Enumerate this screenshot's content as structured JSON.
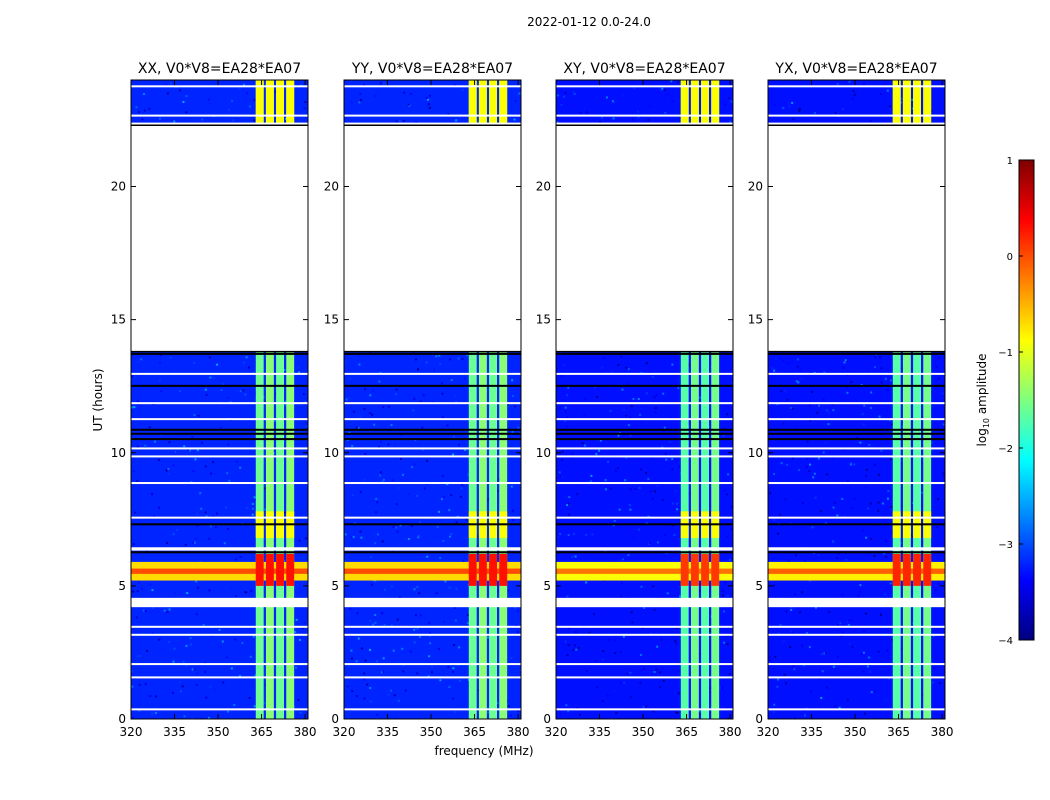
{
  "figure": {
    "suptitle": "2022-01-12 0.0-24.0",
    "xlabel": "frequency (MHz)",
    "ylabel": "UT (hours)"
  },
  "colorbar": {
    "label_prefix": "log",
    "label_sub": "10",
    "label_suffix": " amplitude",
    "range": [
      -4,
      1
    ],
    "ticks": [
      "1",
      "0",
      "−1",
      "−2",
      "−3",
      "−4"
    ],
    "tick_values": [
      1,
      0,
      -1,
      -2,
      -3,
      -4
    ],
    "colormap": "jet",
    "colors": [
      "#00007f",
      "#0000ff",
      "#007fff",
      "#00ffff",
      "#7fff7f",
      "#ffff00",
      "#ff7f00",
      "#ff0000",
      "#7f0000"
    ]
  },
  "chart_data": [
    {
      "type": "heatmap",
      "title": "XX, V0*V8=EA28*EA07",
      "xlabel": "frequency (MHz)",
      "ylabel": "UT (hours)",
      "xlim": [
        320,
        381
      ],
      "ylim": [
        0,
        24
      ],
      "xticks": [
        320,
        335,
        350,
        365,
        380
      ],
      "yticks": [
        0,
        5,
        10,
        15,
        20
      ],
      "no_data_ranges_hours": [
        [
          13.8,
          22.3
        ]
      ],
      "rfi_band_mhz": [
        363,
        377
      ],
      "rfi_peak_hours": [
        5.0,
        6.2
      ],
      "background_log_amplitude": -3.2,
      "band_log_amplitude": -1.6,
      "peak_log_amplitude": 0.3
    },
    {
      "type": "heatmap",
      "title": "YY, V0*V8=EA28*EA07",
      "xlabel": "frequency (MHz)",
      "ylabel": "UT (hours)",
      "xlim": [
        320,
        381
      ],
      "ylim": [
        0,
        24
      ],
      "xticks": [
        320,
        335,
        350,
        365,
        380
      ],
      "yticks": [
        0,
        5,
        10,
        15,
        20
      ],
      "no_data_ranges_hours": [
        [
          13.8,
          22.3
        ]
      ],
      "rfi_band_mhz": [
        363,
        377
      ],
      "rfi_peak_hours": [
        5.0,
        6.2
      ],
      "background_log_amplitude": -3.2,
      "band_log_amplitude": -1.6,
      "peak_log_amplitude": 0.3
    },
    {
      "type": "heatmap",
      "title": "XY, V0*V8=EA28*EA07",
      "xlabel": "frequency (MHz)",
      "ylabel": "UT (hours)",
      "xlim": [
        320,
        381
      ],
      "ylim": [
        0,
        24
      ],
      "xticks": [
        320,
        335,
        350,
        365,
        380
      ],
      "yticks": [
        0,
        5,
        10,
        15,
        20
      ],
      "no_data_ranges_hours": [
        [
          13.8,
          22.3
        ]
      ],
      "rfi_band_mhz": [
        363,
        377
      ],
      "rfi_peak_hours": [
        5.0,
        6.2
      ],
      "background_log_amplitude": -3.3,
      "band_log_amplitude": -1.7,
      "peak_log_amplitude": 0.1
    },
    {
      "type": "heatmap",
      "title": "YX, V0*V8=EA28*EA07",
      "xlabel": "frequency (MHz)",
      "ylabel": "UT (hours)",
      "xlim": [
        320,
        381
      ],
      "ylim": [
        0,
        24
      ],
      "xticks": [
        320,
        335,
        350,
        365,
        380
      ],
      "yticks": [
        0,
        5,
        10,
        15,
        20
      ],
      "no_data_ranges_hours": [
        [
          13.8,
          22.3
        ]
      ],
      "rfi_band_mhz": [
        363,
        377
      ],
      "rfi_peak_hours": [
        5.0,
        6.2
      ],
      "background_log_amplitude": -3.3,
      "band_log_amplitude": -1.7,
      "peak_log_amplitude": 0.2
    }
  ]
}
